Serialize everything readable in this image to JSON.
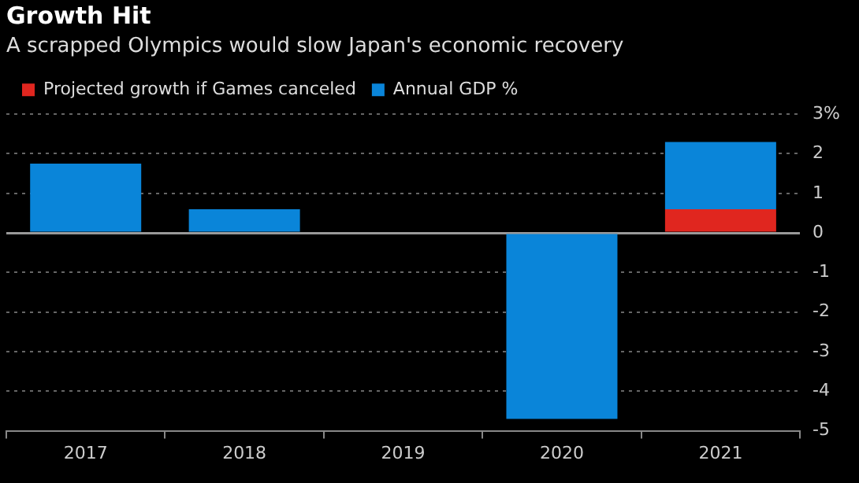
{
  "chart_data": {
    "type": "bar",
    "title": "Growth Hit",
    "subtitle": "A scrapped Olympics would slow Japan's economic recovery",
    "categories": [
      "2017",
      "2018",
      "2019",
      "2020",
      "2021"
    ],
    "series": [
      {
        "name": "Projected growth if Games canceled",
        "color": "#e0261f",
        "values": [
          null,
          null,
          null,
          null,
          0.6
        ]
      },
      {
        "name": "Annual GDP %",
        "color": "#0a85d9",
        "values": [
          1.75,
          0.6,
          null,
          -4.7,
          1.7
        ]
      }
    ],
    "stacked": true,
    "ylim": [
      -5,
      3
    ],
    "yticks": [
      -5,
      -4,
      -3,
      -2,
      -1,
      0,
      1,
      2,
      {
        "value": 3,
        "label": "3%"
      }
    ],
    "grid": "y",
    "legend": "top left"
  }
}
